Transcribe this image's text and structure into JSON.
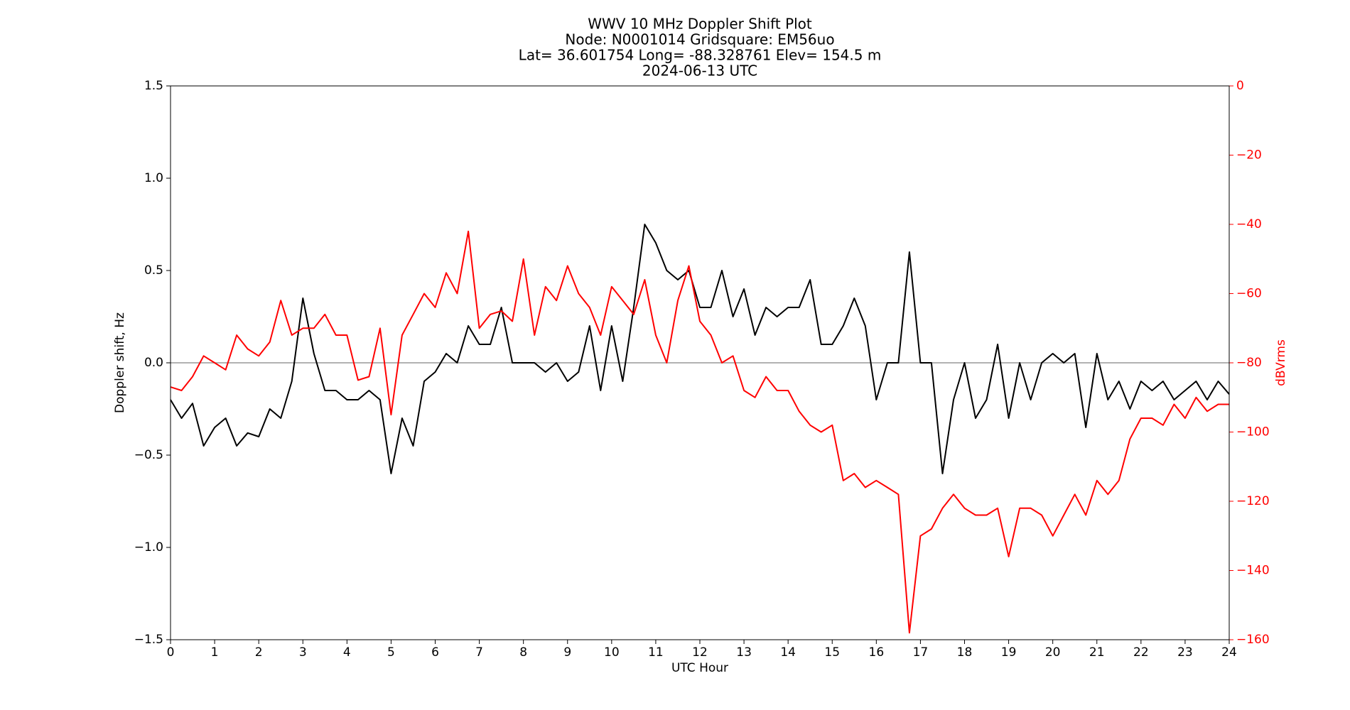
{
  "chart_data": {
    "type": "line",
    "title": [
      "WWV 10 MHz Doppler Shift Plot",
      "Node:  N0001014     Gridsquare:  EM56uo",
      "Lat= 36.601754    Long= -88.328761    Elev= 154.5 m",
      "2024-06-13  UTC"
    ],
    "x_label": "UTC Hour",
    "y_label": "Doppler shift, Hz",
    "y2_label": "dBVrms",
    "x": [
      0,
      0.25,
      0.5,
      0.75,
      1,
      1.25,
      1.5,
      1.75,
      2,
      2.25,
      2.5,
      2.75,
      3,
      3.25,
      3.5,
      3.75,
      4,
      4.25,
      4.5,
      4.75,
      5,
      5.25,
      5.5,
      5.75,
      6,
      6.25,
      6.5,
      6.75,
      7,
      7.25,
      7.5,
      7.75,
      8,
      8.25,
      8.5,
      8.75,
      9,
      9.25,
      9.5,
      9.75,
      10,
      10.25,
      10.5,
      10.75,
      11,
      11.25,
      11.5,
      11.75,
      12,
      12.25,
      12.5,
      12.75,
      13,
      13.25,
      13.5,
      13.75,
      14,
      14.25,
      14.5,
      14.75,
      15,
      15.25,
      15.5,
      15.75,
      16,
      16.25,
      16.5,
      16.75,
      17,
      17.25,
      17.5,
      17.75,
      18,
      18.25,
      18.5,
      18.75,
      19,
      19.25,
      19.5,
      19.75,
      20,
      20.25,
      20.5,
      20.75,
      21,
      21.25,
      21.5,
      21.75,
      22,
      22.25,
      22.5,
      22.75,
      23,
      23.25,
      23.5,
      23.75,
      24
    ],
    "series": [
      {
        "color": "#000000",
        "axis": "y",
        "values": [
          -0.2,
          -0.3,
          -0.22,
          -0.45,
          -0.35,
          -0.3,
          -0.45,
          -0.38,
          -0.4,
          -0.25,
          -0.3,
          -0.1,
          0.35,
          0.05,
          -0.15,
          -0.15,
          -0.2,
          -0.2,
          -0.15,
          -0.2,
          -0.6,
          -0.3,
          -0.45,
          -0.1,
          -0.05,
          0.05,
          0.0,
          0.2,
          0.1,
          0.1,
          0.3,
          0.0,
          0.0,
          0.0,
          -0.05,
          0.0,
          -0.1,
          -0.05,
          0.2,
          -0.15,
          0.2,
          -0.1,
          0.3,
          0.75,
          0.65,
          0.5,
          0.45,
          0.5,
          0.3,
          0.3,
          0.5,
          0.25,
          0.4,
          0.15,
          0.3,
          0.25,
          0.3,
          0.3,
          0.45,
          0.1,
          0.1,
          0.2,
          0.35,
          0.2,
          -0.2,
          0.0,
          0.0,
          0.6,
          0.0,
          0.0,
          -0.6,
          -0.2,
          0.0,
          -0.3,
          -0.2,
          0.1,
          -0.3,
          0.0,
          -0.2,
          0.0,
          0.05,
          0.0,
          0.05,
          -0.35,
          0.05,
          -0.2,
          -0.1,
          -0.25,
          -0.1,
          -0.15,
          -0.1,
          -0.2,
          -0.15,
          -0.1,
          -0.2,
          -0.1,
          -0.17
        ]
      },
      {
        "color": "#ff0000",
        "axis": "y2",
        "values": [
          -87,
          -88,
          -84,
          -78,
          -80,
          -82,
          -72,
          -76,
          -78,
          -74,
          -62,
          -72,
          -70,
          -70,
          -66,
          -72,
          -72,
          -85,
          -84,
          -70,
          -95,
          -72,
          -66,
          -60,
          -64,
          -54,
          -60,
          -42,
          -70,
          -66,
          -65,
          -68,
          -50,
          -72,
          -58,
          -62,
          -52,
          -60,
          -64,
          -72,
          -58,
          -62,
          -66,
          -56,
          -72,
          -80,
          -62,
          -52,
          -68,
          -72,
          -80,
          -78,
          -88,
          -90,
          -84,
          -88,
          -88,
          -94,
          -98,
          -100,
          -98,
          -114,
          -112,
          -116,
          -114,
          -116,
          -118,
          -158,
          -130,
          -128,
          -122,
          -118,
          -122,
          -124,
          -124,
          -122,
          -136,
          -122,
          -122,
          -124,
          -130,
          -124,
          -118,
          -124,
          -114,
          -118,
          -114,
          -102,
          -96,
          -96,
          -98,
          -92,
          -96,
          -90,
          -94,
          -92,
          -92
        ]
      }
    ],
    "xlim": [
      0,
      24
    ],
    "xticks": [
      0,
      1,
      2,
      3,
      4,
      5,
      6,
      7,
      8,
      9,
      10,
      11,
      12,
      13,
      14,
      15,
      16,
      17,
      18,
      19,
      20,
      21,
      22,
      23,
      24
    ],
    "ylim": [
      -1.5,
      1.5
    ],
    "yticks": [
      {
        "value": -1.5,
        "label": "−1.5"
      },
      {
        "value": -1.0,
        "label": "−1.0"
      },
      {
        "value": -0.5,
        "label": "−0.5"
      },
      {
        "value": 0,
        "label": "0.0"
      },
      0.5,
      {
        "value": 1.0,
        "label": "1.0"
      },
      1.5
    ],
    "y2lim": [
      -160,
      0
    ],
    "y2ticks": [
      {
        "value": -160,
        "label": "−160"
      },
      {
        "value": -140,
        "label": "−140"
      },
      {
        "value": -120,
        "label": "−120"
      },
      {
        "value": -100,
        "label": "−100"
      },
      {
        "value": -80,
        "label": "−80"
      },
      {
        "value": -60,
        "label": "−60"
      },
      {
        "value": -40,
        "label": "−40"
      },
      {
        "value": -20,
        "label": "−20"
      },
      0
    ],
    "y2_color": "#ff0000",
    "hlines": [
      0
    ]
  }
}
